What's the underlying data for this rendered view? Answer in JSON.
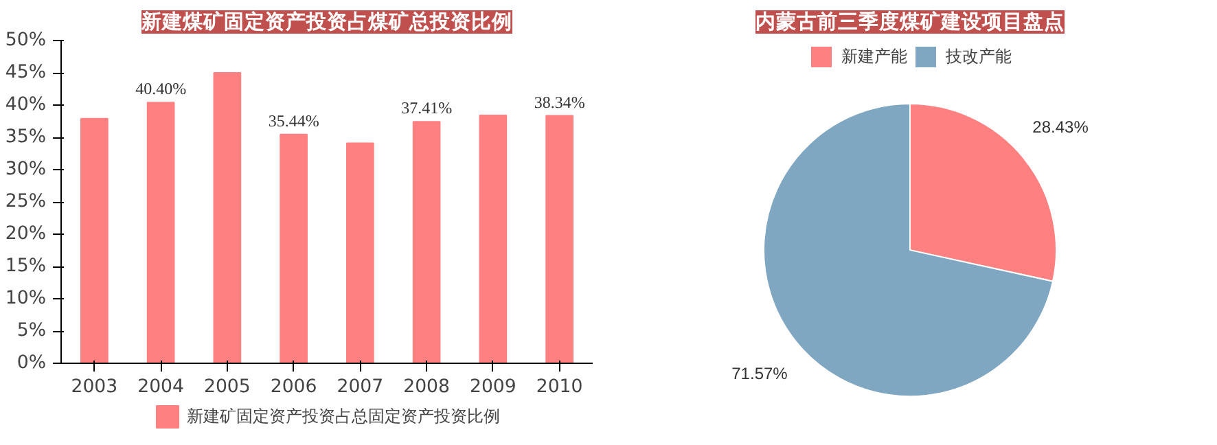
{
  "chart_data": [
    {
      "type": "bar",
      "title": "新建煤矿固定资产投资占煤矿总投资比例",
      "categories": [
        "2003",
        "2004",
        "2005",
        "2006",
        "2007",
        "2008",
        "2009",
        "2010"
      ],
      "series": [
        {
          "name": "新建矿固定资产投资占总固定资产投资比例",
          "color": "#ff8080",
          "values": [
            37.9,
            40.4,
            45.0,
            35.44,
            34.1,
            37.41,
            38.4,
            38.34
          ],
          "value_labels": [
            null,
            "40.40%",
            null,
            "35.44%",
            null,
            "37.41%",
            null,
            "38.34%"
          ]
        }
      ],
      "ylim": [
        0,
        50
      ],
      "yticks": [
        {
          "value": 0,
          "label": "0%"
        },
        {
          "value": 5,
          "label": "5%"
        },
        {
          "value": 10,
          "label": "10%"
        },
        {
          "value": 15,
          "label": "15%"
        },
        {
          "value": 20,
          "label": "20%"
        },
        {
          "value": 25,
          "label": "25%"
        },
        {
          "value": 30,
          "label": "30%"
        },
        {
          "value": 35,
          "label": "35%"
        },
        {
          "value": 40,
          "label": "40%"
        },
        {
          "value": 45,
          "label": "45%"
        },
        {
          "value": 50,
          "label": "50%"
        }
      ],
      "grid": false,
      "legend": "bottom"
    },
    {
      "type": "pie",
      "title": "内蒙古前三季度煤矿建设项目盘点",
      "categories": [
        "新建产能",
        "技改产能"
      ],
      "values": [
        28.43,
        71.57
      ],
      "colors": [
        "#ff8080",
        "#7fa7c1"
      ],
      "value_labels": [
        "28.43%",
        "71.57%"
      ],
      "legend": "top"
    }
  ]
}
